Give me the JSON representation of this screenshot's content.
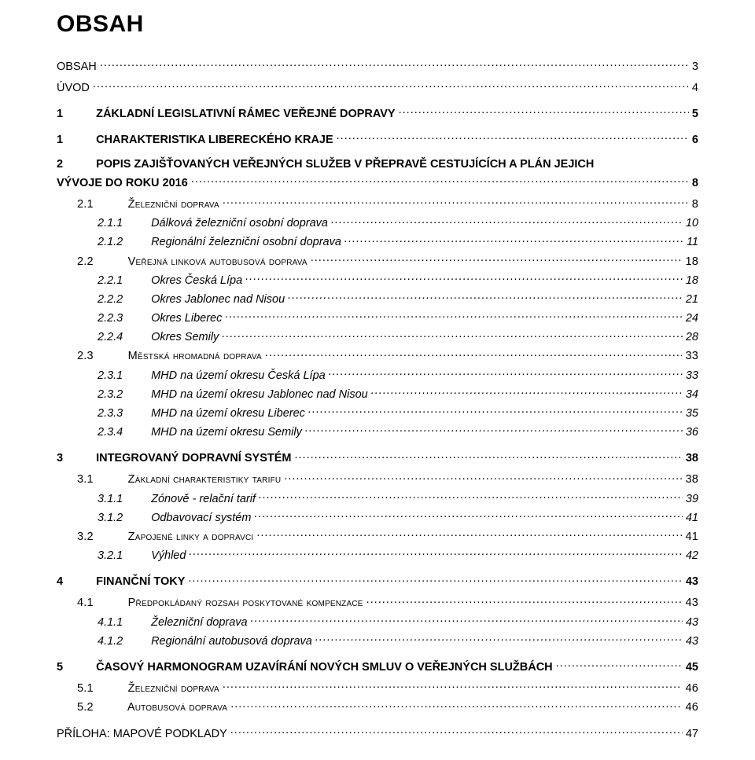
{
  "title": "OBSAH",
  "entries": [
    {
      "level": 0,
      "weight": "w400",
      "style": "",
      "num": "",
      "text": "OBSAH",
      "page": "3",
      "gap": ""
    },
    {
      "level": 0,
      "weight": "w400",
      "style": "",
      "num": "",
      "text": "ÚVOD",
      "page": "4",
      "gap": "gap-top-sm"
    },
    {
      "level": 1,
      "weight": "w700",
      "style": "",
      "num": "1",
      "text": "ZÁKLADNÍ LEGISLATIVNÍ RÁMEC VEŘEJNÉ DOPRAVY",
      "page": "5",
      "gap": "gap-top"
    },
    {
      "level": 1,
      "weight": "w700",
      "style": "",
      "num": "1",
      "text": "CHARAKTERISTIKA LIBERECKÉHO KRAJE",
      "page": "6",
      "gap": "gap-top"
    },
    {
      "level": 1,
      "weight": "w700",
      "style": "",
      "num": "2",
      "text": "POPIS ZAJIŠŤOVANÝCH VEŘEJNÝCH SLUŽEB V PŘEPRAVĚ CESTUJÍCÍCH A PLÁN JEJICH",
      "page": "",
      "gap": "gap-top",
      "nowrapPage": true
    },
    {
      "level": 1,
      "weight": "w700",
      "style": "",
      "num": "",
      "text": "VÝVOJE DO ROKU 2016",
      "page": "8",
      "gap": ""
    },
    {
      "level": 2,
      "weight": "w400",
      "style": "smcaps",
      "num": "2.1",
      "text": "Železniční doprava",
      "page": "8",
      "gap": "gap-top-sm"
    },
    {
      "level": 3,
      "weight": "w400",
      "style": "italic",
      "num": "2.1.1",
      "text": "Dálková železniční osobní doprava",
      "page": "10",
      "gap": ""
    },
    {
      "level": 3,
      "weight": "w400",
      "style": "italic",
      "num": "2.1.2",
      "text": "Regionální železniční osobní doprava",
      "page": "11",
      "gap": ""
    },
    {
      "level": 2,
      "weight": "w400",
      "style": "smcaps",
      "num": "2.2",
      "text": "Veřejná linková autobusová doprava",
      "page": "18",
      "gap": ""
    },
    {
      "level": 3,
      "weight": "w400",
      "style": "italic",
      "num": "2.2.1",
      "text": "Okres Česká Lípa",
      "page": "18",
      "gap": ""
    },
    {
      "level": 3,
      "weight": "w400",
      "style": "italic",
      "num": "2.2.2",
      "text": "Okres Jablonec nad Nisou",
      "page": "21",
      "gap": ""
    },
    {
      "level": 3,
      "weight": "w400",
      "style": "italic",
      "num": "2.2.3",
      "text": "Okres Liberec",
      "page": "24",
      "gap": ""
    },
    {
      "level": 3,
      "weight": "w400",
      "style": "italic",
      "num": "2.2.4",
      "text": "Okres Semily",
      "page": "28",
      "gap": ""
    },
    {
      "level": 2,
      "weight": "w400",
      "style": "smcaps",
      "num": "2.3",
      "text": "Městská hromadná doprava",
      "page": "33",
      "gap": ""
    },
    {
      "level": 3,
      "weight": "w400",
      "style": "italic",
      "num": "2.3.1",
      "text": "MHD na území okresu Česká Lípa",
      "page": "33",
      "gap": ""
    },
    {
      "level": 3,
      "weight": "w400",
      "style": "italic",
      "num": "2.3.2",
      "text": "MHD na území okresu Jablonec nad Nisou",
      "page": "34",
      "gap": ""
    },
    {
      "level": 3,
      "weight": "w400",
      "style": "italic",
      "num": "2.3.3",
      "text": "MHD na území okresu Liberec",
      "page": "35",
      "gap": ""
    },
    {
      "level": 3,
      "weight": "w400",
      "style": "italic",
      "num": "2.3.4",
      "text": "MHD na území okresu Semily",
      "page": "36",
      "gap": ""
    },
    {
      "level": 1,
      "weight": "w700",
      "style": "",
      "num": "3",
      "text": "INTEGROVANÝ DOPRAVNÍ SYSTÉM",
      "page": "38",
      "gap": "gap-top"
    },
    {
      "level": 2,
      "weight": "w400",
      "style": "smcaps",
      "num": "3.1",
      "text": "Základní charakteristiky tarifu",
      "page": "38",
      "gap": "gap-top-sm"
    },
    {
      "level": 3,
      "weight": "w400",
      "style": "italic",
      "num": "3.1.1",
      "text": "Zónově - relační tarif",
      "page": "39",
      "gap": ""
    },
    {
      "level": 3,
      "weight": "w400",
      "style": "italic",
      "num": "3.1.2",
      "text": "Odbavovací systém",
      "page": "41",
      "gap": ""
    },
    {
      "level": 2,
      "weight": "w400",
      "style": "smcaps",
      "num": "3.2",
      "text": "Zapojené linky a dopravci",
      "page": "41",
      "gap": ""
    },
    {
      "level": 3,
      "weight": "w400",
      "style": "italic",
      "num": "3.2.1",
      "text": "Výhled",
      "page": "42",
      "gap": ""
    },
    {
      "level": 1,
      "weight": "w700",
      "style": "",
      "num": "4",
      "text": "FINANČNÍ TOKY",
      "page": "43",
      "gap": "gap-top"
    },
    {
      "level": 2,
      "weight": "w400",
      "style": "smcaps",
      "num": "4.1",
      "text": "Předpokládaný rozsah poskytované kompenzace",
      "page": "43",
      "gap": "gap-top-sm"
    },
    {
      "level": 3,
      "weight": "w400",
      "style": "italic",
      "num": "4.1.1",
      "text": "Železniční doprava",
      "page": "43",
      "gap": ""
    },
    {
      "level": 3,
      "weight": "w400",
      "style": "italic",
      "num": "4.1.2",
      "text": "Regionální autobusová doprava",
      "page": "43",
      "gap": ""
    },
    {
      "level": 1,
      "weight": "w700",
      "style": "",
      "num": "5",
      "text": "ČASOVÝ HARMONOGRAM UZAVÍRÁNÍ NOVÝCH SMLUV O VEŘEJNÝCH SLUŽBÁCH",
      "page": "45",
      "gap": "gap-top"
    },
    {
      "level": 2,
      "weight": "w400",
      "style": "smcaps",
      "num": "5.1",
      "text": "Železniční doprava",
      "page": "46",
      "gap": "gap-top-sm"
    },
    {
      "level": 2,
      "weight": "w400",
      "style": "smcaps",
      "num": "5.2",
      "text": "Autobusová doprava",
      "page": "46",
      "gap": ""
    },
    {
      "level": 0,
      "weight": "w400",
      "style": "",
      "num": "",
      "text": "PŘÍLOHA: MAPOVÉ PODKLADY",
      "page": "47",
      "gap": "gap-top"
    }
  ]
}
